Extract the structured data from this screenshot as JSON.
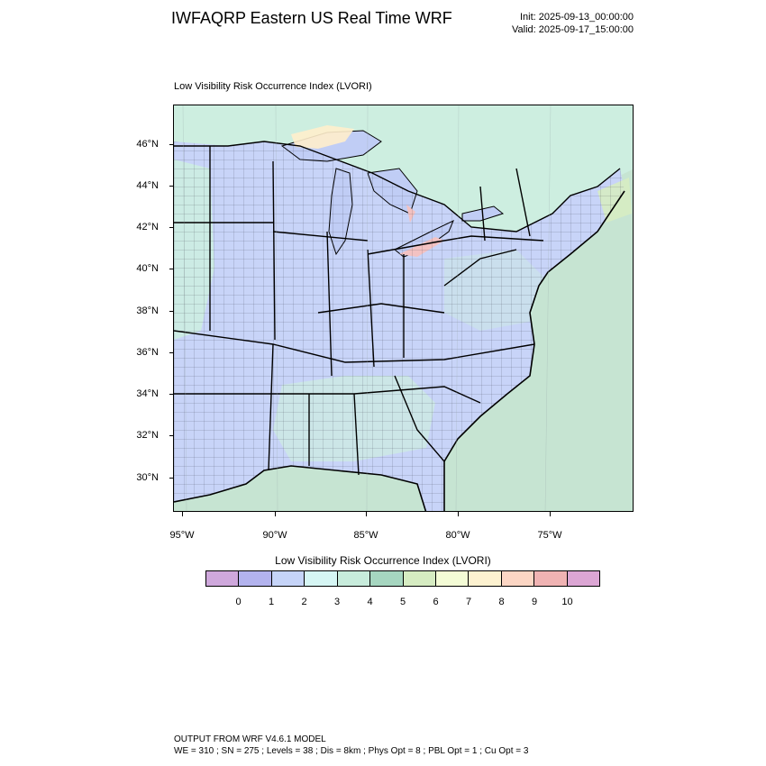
{
  "header": {
    "title": "IWFAQRP Eastern US Real Time WRF",
    "init": "Init: 2025-09-13_00:00:00",
    "valid": "Valid: 2025-09-17_15:00:00"
  },
  "map": {
    "field_title": "Low Visibility Risk Occurrence Index   (LVORI)",
    "lat_labels": [
      "46°N",
      "44°N",
      "42°N",
      "40°N",
      "38°N",
      "36°N",
      "34°N",
      "32°N",
      "30°N"
    ],
    "lon_labels": [
      "95°W",
      "90°W",
      "85°W",
      "80°W",
      "75°W"
    ],
    "colors": {
      "land_base": "#c8d4f8",
      "land_alt": "#cdeee0",
      "ocean": "#c6e4d2",
      "lake": "#c0cdf5",
      "terrain_high": "#ffeecc",
      "terrain_peak": "#f3c2c2",
      "boundary": "#000000"
    }
  },
  "colorbar": {
    "title": "Low Visibility Risk Occurrence Index  (LVORI)",
    "colors": [
      "#cfa8dc",
      "#b3b3ee",
      "#c6d4f8",
      "#d6f6f4",
      "#c8ecdc",
      "#a6d6c0",
      "#d6ecc2",
      "#f4fcd6",
      "#fdf2d0",
      "#fcd6c4",
      "#f0b3b3",
      "#dca6d4"
    ],
    "labels": [
      "0",
      "1",
      "2",
      "3",
      "4",
      "5",
      "6",
      "7",
      "8",
      "9",
      "10"
    ]
  },
  "footer": {
    "line1": "OUTPUT FROM WRF V4.6.1 MODEL",
    "line2": "WE = 310 ; SN = 275 ; Levels = 38 ; Dis = 8km ; Phys Opt = 8 ; PBL Opt = 1 ; Cu Opt = 3"
  }
}
